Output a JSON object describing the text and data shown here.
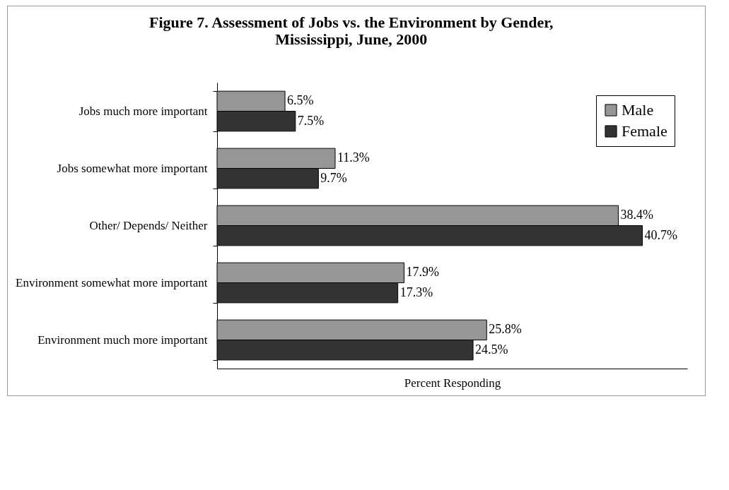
{
  "chart_data": {
    "type": "bar",
    "orientation": "horizontal",
    "title": [
      "Figure 7. Assessment of Jobs vs. the Environment by Gender,",
      "Mississippi, June, 2000"
    ],
    "xlabel": "Percent Responding",
    "categories": [
      "Jobs much more important",
      "Jobs somewhat more important",
      "Other/ Depends/ Neither",
      "Environment somewhat more important",
      "Environment much more important"
    ],
    "series": [
      {
        "name": "Male",
        "color": "#969696",
        "values": [
          6.5,
          11.3,
          38.4,
          17.9,
          25.8
        ],
        "value_labels": [
          "6.5%",
          "11.3%",
          "38.4%",
          "17.9%",
          "25.8%"
        ]
      },
      {
        "name": "Female",
        "color": "#333333",
        "values": [
          7.5,
          9.7,
          40.7,
          17.3,
          24.5
        ],
        "value_labels": [
          "7.5%",
          "9.7%",
          "40.7%",
          "17.3%",
          "24.5%"
        ]
      }
    ],
    "legend": "top right"
  }
}
